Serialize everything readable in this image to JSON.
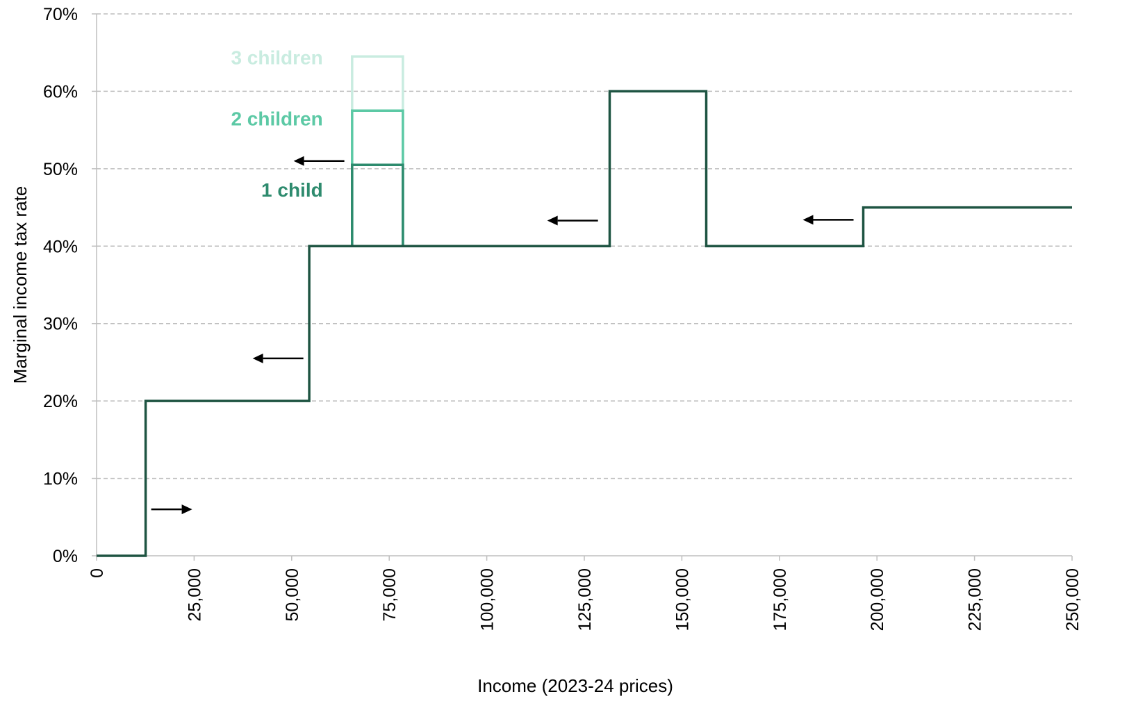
{
  "chart_data": {
    "type": "line",
    "title": "",
    "xlabel": "Income (2023-24 prices)",
    "ylabel": "Marginal income tax rate",
    "xlim": [
      0,
      250000
    ],
    "ylim": [
      0,
      70
    ],
    "x_ticks": [
      "0",
      "25,000",
      "50,000",
      "75,000",
      "100,000",
      "125,000",
      "150,000",
      "175,000",
      "200,000",
      "225,000",
      "250,000"
    ],
    "y_ticks": [
      "0%",
      "10%",
      "20%",
      "30%",
      "40%",
      "50%",
      "60%",
      "70%"
    ],
    "grid": true,
    "series": [
      {
        "name": "3 children",
        "color": "#c9ece0",
        "x": [
          65500,
          65500,
          78500,
          78500
        ],
        "y": [
          40,
          64.5,
          64.5,
          40
        ]
      },
      {
        "name": "2 children",
        "color": "#5cc9a5",
        "x": [
          65500,
          65500,
          78500,
          78500
        ],
        "y": [
          40,
          57.5,
          57.5,
          40
        ]
      },
      {
        "name": "1 child",
        "color": "#2e8b6e",
        "x": [
          65500,
          65500,
          78500,
          78500
        ],
        "y": [
          40,
          50.5,
          50.5,
          40
        ]
      },
      {
        "name": "",
        "color": "#1e5442",
        "x": [
          0,
          12570,
          12570,
          54500,
          54500,
          131500,
          131500,
          156250,
          156250,
          196500,
          196500,
          250000
        ],
        "y": [
          0,
          0,
          20,
          20,
          40,
          40,
          60,
          60,
          40,
          40,
          45,
          45
        ]
      }
    ],
    "annotations": [
      {
        "type": "arrow",
        "direction": "right",
        "x_from": 14000,
        "x_to": 24500,
        "y": 6
      },
      {
        "type": "arrow",
        "direction": "left",
        "x_from": 53000,
        "x_to": 40000,
        "y": 25.5
      },
      {
        "type": "arrow",
        "direction": "left",
        "x_from": 63500,
        "x_to": 50500,
        "y": 51
      },
      {
        "type": "arrow",
        "direction": "left",
        "x_from": 128500,
        "x_to": 115500,
        "y": 43.3
      },
      {
        "type": "arrow",
        "direction": "left",
        "x_from": 194000,
        "x_to": 181000,
        "y": 43.4
      }
    ],
    "labels": [
      {
        "text": "3 children",
        "color": "#c9ece0",
        "x": 58000,
        "y": 63.5
      },
      {
        "text": "2 children",
        "color": "#5cc9a5",
        "x": 58000,
        "y": 55.6
      },
      {
        "text": "1 child",
        "color": "#2e8b6e",
        "x": 58000,
        "y": 46.4
      }
    ]
  }
}
